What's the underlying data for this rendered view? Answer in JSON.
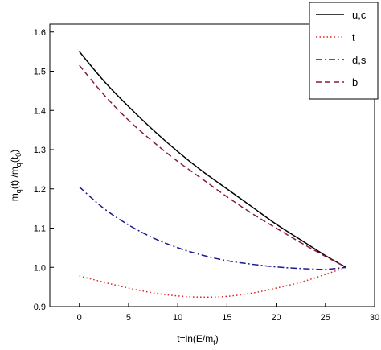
{
  "chart_data": {
    "type": "line",
    "xlabel": "t=ln(E/m",
    "xlabel_sub": "t",
    "xlabel_close": ")",
    "ylabel_parts": [
      "m",
      "q",
      "(t) /m",
      "q",
      "(t",
      "0",
      ")"
    ],
    "xlim": [
      -3,
      30
    ],
    "ylim": [
      0.9,
      1.62
    ],
    "x_ticks": [
      0,
      5,
      10,
      15,
      20,
      25,
      30
    ],
    "y_ticks": [
      0.9,
      1.0,
      1.1,
      1.2,
      1.3,
      1.4,
      1.5,
      1.6
    ],
    "x_tick_labels": [
      "0",
      "5",
      "10",
      "15",
      "20",
      "25",
      "30"
    ],
    "y_tick_labels": [
      "0.9",
      "1.0",
      "1.1",
      "1.2",
      "1.3",
      "1.4",
      "1.5",
      "1.6"
    ],
    "grid": false,
    "legend_position": "top-right",
    "series": [
      {
        "name": "u,c",
        "color": "#000000",
        "dash": "solid",
        "x": [
          0,
          2.5,
          5,
          7.5,
          10,
          12.5,
          15,
          17.5,
          20,
          22.5,
          25,
          27.1
        ],
        "y": [
          1.55,
          1.475,
          1.41,
          1.35,
          1.295,
          1.245,
          1.2,
          1.155,
          1.11,
          1.07,
          1.03,
          1.0
        ]
      },
      {
        "name": "t",
        "color": "#e02020",
        "dash": "dotted",
        "x": [
          0,
          2.5,
          5,
          7.5,
          10,
          12.5,
          15,
          17.5,
          20,
          22.5,
          25,
          27.1
        ],
        "y": [
          0.978,
          0.962,
          0.947,
          0.935,
          0.927,
          0.924,
          0.926,
          0.934,
          0.947,
          0.962,
          0.982,
          1.0
        ]
      },
      {
        "name": "d,s",
        "color": "#1a1a8c",
        "dash": "dashdot",
        "x": [
          0,
          2.5,
          5,
          7.5,
          10,
          12.5,
          15,
          17.5,
          20,
          22.5,
          25,
          27.1
        ],
        "y": [
          1.205,
          1.15,
          1.108,
          1.075,
          1.05,
          1.031,
          1.017,
          1.008,
          1.001,
          0.997,
          0.995,
          1.0
        ]
      },
      {
        "name": "b",
        "color": "#8b1a3a",
        "dash": "dashed",
        "x": [
          0,
          2.5,
          5,
          7.5,
          10,
          12.5,
          15,
          17.5,
          20,
          22.5,
          25,
          27.1
        ],
        "y": [
          1.515,
          1.44,
          1.375,
          1.32,
          1.27,
          1.225,
          1.18,
          1.138,
          1.1,
          1.063,
          1.028,
          1.0
        ]
      }
    ]
  }
}
